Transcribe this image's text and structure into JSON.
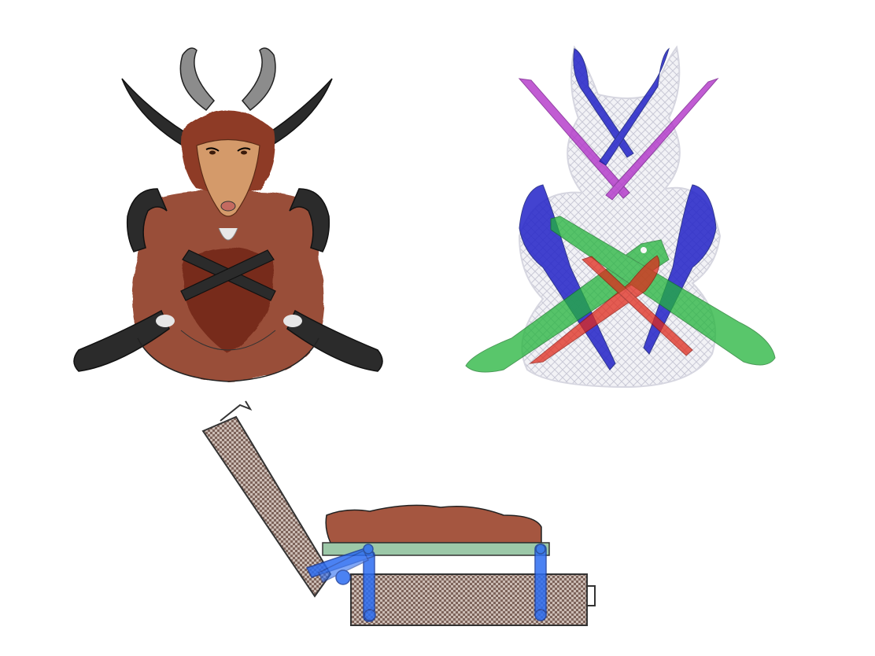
{
  "illustration": {
    "panels": [
      {
        "name": "seated-antelope",
        "description_visible": false
      },
      {
        "name": "knife-arrangement",
        "description_visible": false
      },
      {
        "name": "suitcase-mechanism",
        "description_visible": false
      }
    ],
    "colors": {
      "fur": "#8e3a25",
      "fur_dark": "#6e2512",
      "face": "#d49a6a",
      "horn": "#2b2b2b",
      "knife_purple": "#b234c9",
      "knife_blue": "#2323c8",
      "knife_green": "#22b43a",
      "knife_red": "#e02a1c",
      "case_pattern": "#8b7368",
      "linkage_blue": "#2c6df2",
      "tray_green": "#9cc8a8"
    }
  }
}
